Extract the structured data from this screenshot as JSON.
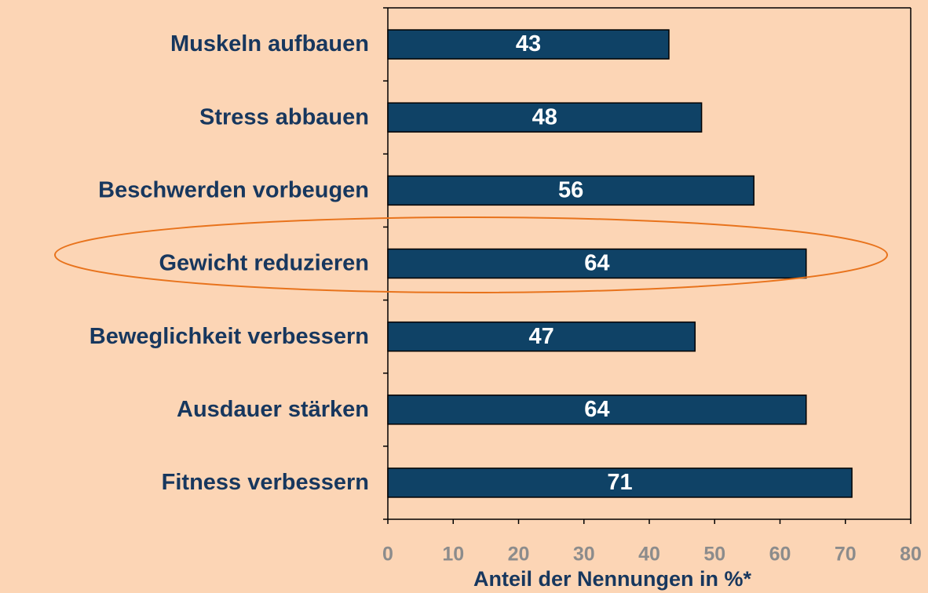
{
  "chart_data": {
    "type": "bar",
    "orientation": "horizontal",
    "categories": [
      "Muskeln aufbauen",
      "Stress abbauen",
      "Beschwerden vorbeugen",
      "Gewicht reduzieren",
      "Beweglichkeit verbessern",
      "Ausdauer stärken",
      "Fitness verbessern"
    ],
    "values": [
      43,
      48,
      56,
      64,
      47,
      64,
      71
    ],
    "color": "#0f4266",
    "xlabel": "Anteil der Nennungen in %*",
    "xlim": [
      0,
      80
    ],
    "xticks": [
      0,
      10,
      20,
      30,
      40,
      50,
      60,
      70,
      80
    ]
  }
}
